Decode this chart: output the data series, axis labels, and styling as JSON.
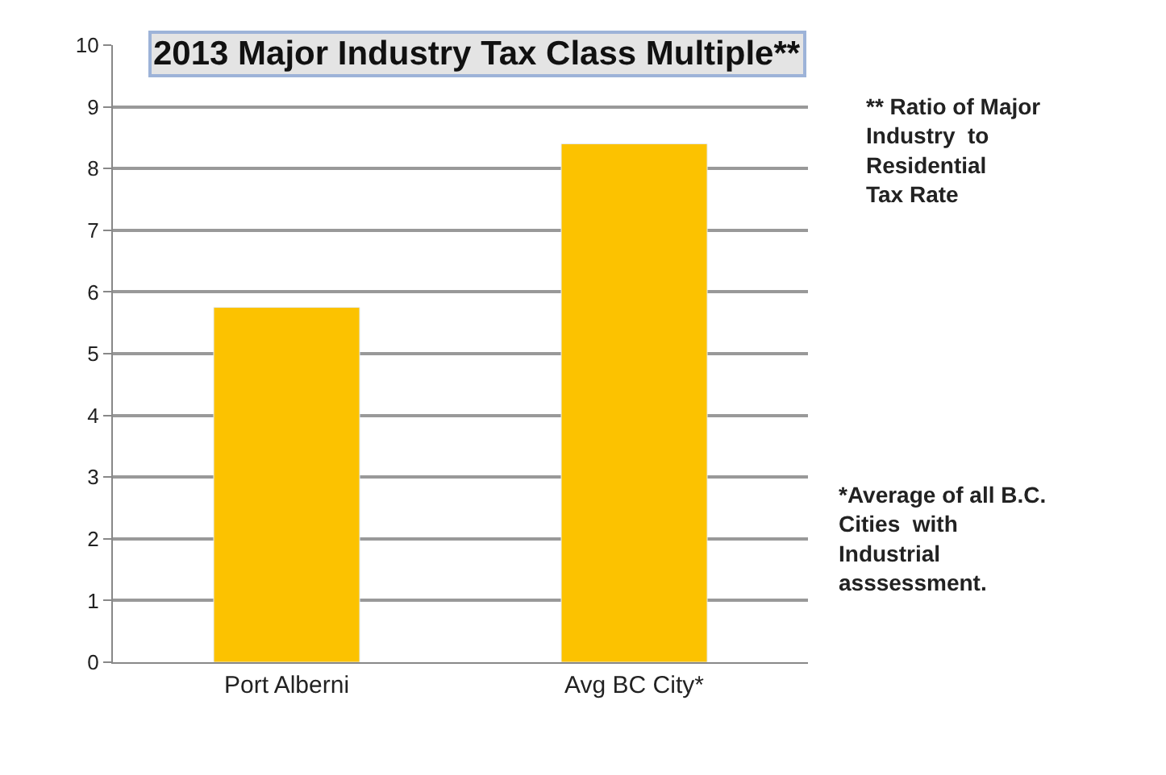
{
  "chart_data": {
    "type": "bar",
    "title": "2013 Major Industry Tax Class Multiple**",
    "categories": [
      "Port Alberni",
      "Avg BC City*"
    ],
    "values": [
      5.75,
      8.4
    ],
    "color": "#fcc200",
    "ylim": [
      0,
      10
    ],
    "yticks": [
      0,
      1,
      2,
      3,
      4,
      5,
      6,
      7,
      8,
      9,
      10
    ],
    "grid": "y",
    "annotations": [
      "** Ratio of Major\nIndustry  to\nResidential\nTax Rate",
      "*Average of all B.C.\nCities  with\nIndustrial\nasssessment."
    ]
  }
}
